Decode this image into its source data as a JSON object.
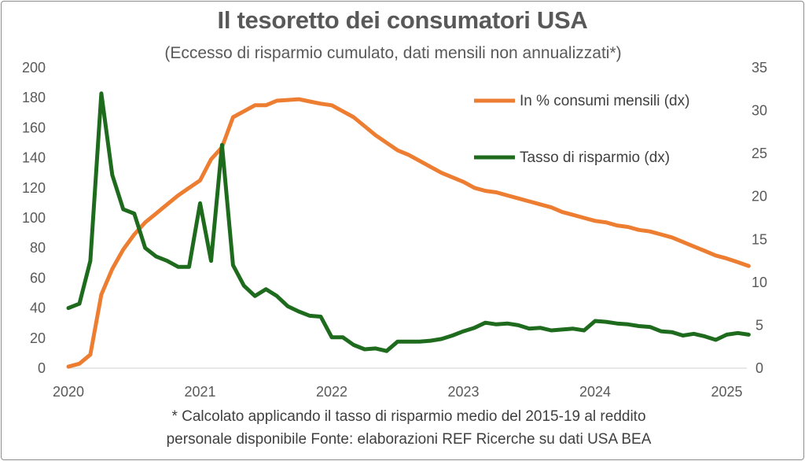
{
  "header": {
    "title": "Il tesoretto dei consumatori USA",
    "subtitle": "(Eccesso di risparmio cumulato, dati mensili non annualizzati*)"
  },
  "footer": {
    "note_line1": "* Calcolato applicando il tasso di risparmio medio del 2015-19 al reddito",
    "note_line2": "personale disponibile  Fonte: elaborazioni REF Ricerche su dati USA BEA"
  },
  "chart_data": {
    "type": "line",
    "title": "Il tesoretto dei consumatori USA",
    "subtitle": "(Eccesso di risparmio cumulato, dati mensili non annualizzati*)",
    "x_tick_labels": [
      "2020",
      "2021",
      "2022",
      "2023",
      "2024",
      "2025"
    ],
    "x_start": 2020.0,
    "x_step_months": 1,
    "y_left": {
      "range": [
        0,
        200
      ],
      "ticks": [
        0,
        20,
        40,
        60,
        80,
        100,
        120,
        140,
        160,
        180,
        200
      ]
    },
    "y_right": {
      "range": [
        0,
        35
      ],
      "ticks": [
        0,
        5,
        10,
        15,
        20,
        25,
        30,
        35
      ]
    },
    "grid": false,
    "legend_position": "top-right",
    "colors": {
      "orange": "#ED7D31",
      "green": "#1E6B1E",
      "axis_text": "#595959"
    },
    "series": [
      {
        "name": "In % consumi mensili (dx)",
        "color": "#ED7D31",
        "axis": "left",
        "values": [
          1,
          3,
          9,
          49,
          66,
          79,
          89,
          97,
          103,
          109,
          115,
          120,
          125,
          139,
          147,
          167,
          171,
          175,
          175,
          178,
          178.5,
          179,
          177.5,
          176,
          175,
          171,
          167,
          161,
          155,
          150,
          145,
          142,
          138,
          134,
          130,
          127,
          124,
          120,
          118,
          117,
          115,
          113,
          111,
          109,
          107,
          104,
          102,
          100,
          98,
          97,
          95,
          94,
          92,
          91,
          89,
          87,
          84,
          81,
          78,
          75,
          73,
          70.5,
          68
        ]
      },
      {
        "name": "Tasso di risparmio (dx)",
        "color": "#1E6B1E",
        "axis": "right",
        "values": [
          7,
          7.5,
          12.5,
          32,
          22.5,
          18.5,
          18,
          14,
          13,
          12.5,
          11.8,
          11.8,
          19.2,
          12.5,
          26,
          12,
          9.6,
          8.4,
          9.2,
          8.4,
          7.2,
          6.6,
          6.1,
          6,
          3.6,
          3.6,
          2.7,
          2.2,
          2.3,
          2,
          3.1,
          3.1,
          3.1,
          3.2,
          3.4,
          3.8,
          4.3,
          4.7,
          5.3,
          5.1,
          5.2,
          5,
          4.6,
          4.7,
          4.4,
          4.5,
          4.6,
          4.4,
          5.5,
          5.4,
          5.2,
          5.1,
          4.9,
          4.8,
          4.3,
          4.2,
          3.8,
          4,
          3.7,
          3.3,
          3.9,
          4.1,
          3.9
        ]
      }
    ]
  }
}
